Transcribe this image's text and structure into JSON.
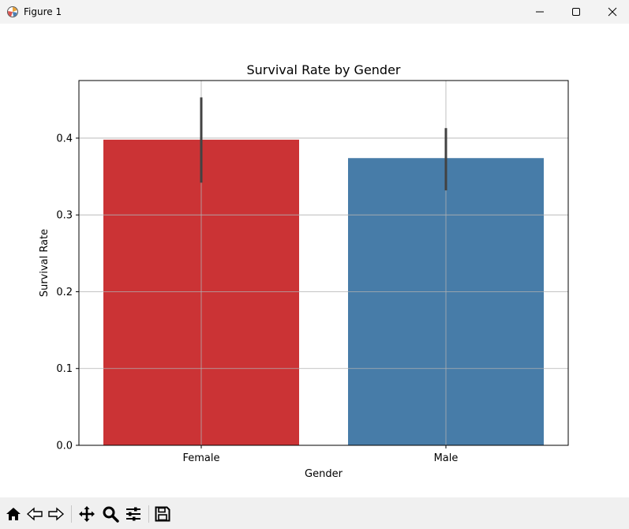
{
  "window": {
    "title": "Figure 1"
  },
  "toolbar": {
    "tools": [
      "home-icon",
      "back-icon",
      "forward-icon",
      "pan-icon",
      "zoom-icon",
      "configure-subplots-icon",
      "save-icon"
    ]
  },
  "colors": {
    "female_bar": "#cb3335",
    "male_bar": "#477ca8",
    "error_bar": "#424242",
    "grid": "#b0b0b0"
  },
  "chart_data": {
    "type": "bar",
    "title": "Survival Rate by Gender",
    "xlabel": "Gender",
    "ylabel": "Survival Rate",
    "categories": [
      "Female",
      "Male"
    ],
    "values": [
      0.398,
      0.374
    ],
    "error_low": [
      0.342,
      0.332
    ],
    "error_high": [
      0.453,
      0.413
    ],
    "ylim": [
      0,
      0.475
    ],
    "yticks": [
      0.0,
      0.1,
      0.2,
      0.3,
      0.4
    ],
    "ytick_labels": [
      "0.0",
      "0.1",
      "0.2",
      "0.3",
      "0.4"
    ],
    "grid": true,
    "legend": false
  }
}
